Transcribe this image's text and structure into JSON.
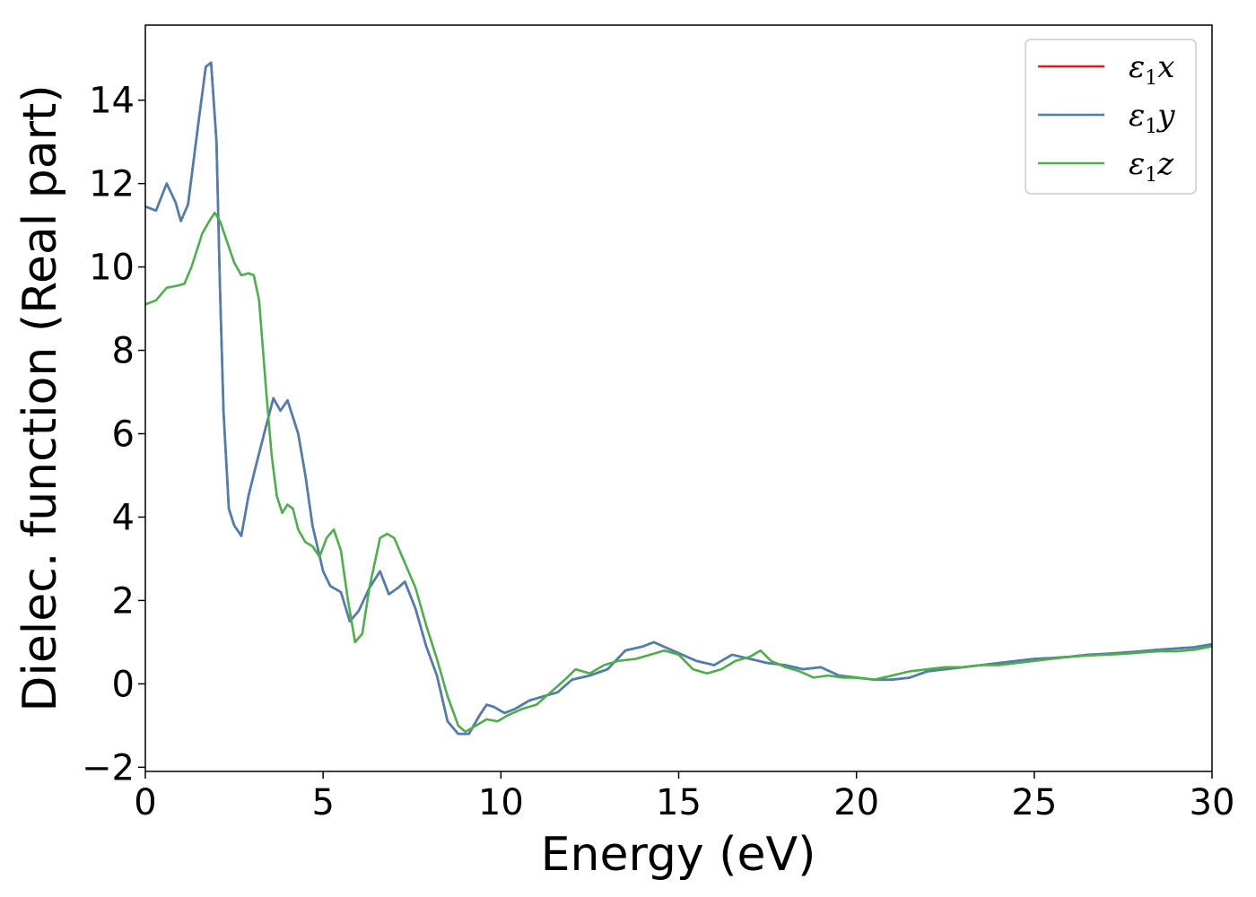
{
  "chart_data": {
    "type": "line",
    "xlabel": "Energy (eV)",
    "ylabel": "Dielec. function (Real part)",
    "xlim": [
      0,
      30
    ],
    "ylim": [
      -2.1,
      15.8
    ],
    "xticks": [
      0,
      5,
      10,
      15,
      20,
      25,
      30
    ],
    "xtick_labels": [
      "0",
      "5",
      "10",
      "15",
      "20",
      "25",
      "30"
    ],
    "yticks": [
      -2,
      0,
      2,
      4,
      6,
      8,
      10,
      12,
      14
    ],
    "ytick_labels": [
      "−2",
      "0",
      "2",
      "4",
      "6",
      "8",
      "10",
      "12",
      "14"
    ],
    "grid": false,
    "legend_position": "top-right",
    "series": [
      {
        "name": "ε1x",
        "label_base": "ε",
        "label_sub": "1",
        "label_axis": "x",
        "color": "#e41a1c",
        "points": [
          [
            0,
            11.45
          ],
          [
            0.3,
            11.35
          ],
          [
            0.6,
            12.0
          ],
          [
            0.85,
            11.55
          ],
          [
            1.0,
            11.1
          ],
          [
            1.2,
            11.5
          ],
          [
            1.5,
            13.5
          ],
          [
            1.7,
            14.8
          ],
          [
            1.85,
            14.9
          ],
          [
            2.0,
            13.0
          ],
          [
            2.1,
            9.5
          ],
          [
            2.2,
            6.5
          ],
          [
            2.35,
            4.2
          ],
          [
            2.5,
            3.8
          ],
          [
            2.7,
            3.55
          ],
          [
            2.9,
            4.5
          ],
          [
            3.1,
            5.2
          ],
          [
            3.4,
            6.2
          ],
          [
            3.6,
            6.85
          ],
          [
            3.8,
            6.55
          ],
          [
            4.0,
            6.8
          ],
          [
            4.3,
            6.0
          ],
          [
            4.5,
            5.0
          ],
          [
            4.7,
            3.8
          ],
          [
            5.0,
            2.7
          ],
          [
            5.2,
            2.35
          ],
          [
            5.5,
            2.2
          ],
          [
            5.75,
            1.5
          ],
          [
            6.0,
            1.75
          ],
          [
            6.3,
            2.3
          ],
          [
            6.6,
            2.7
          ],
          [
            6.85,
            2.15
          ],
          [
            7.1,
            2.3
          ],
          [
            7.3,
            2.45
          ],
          [
            7.6,
            1.8
          ],
          [
            7.9,
            0.9
          ],
          [
            8.2,
            0.2
          ],
          [
            8.5,
            -0.9
          ],
          [
            8.8,
            -1.2
          ],
          [
            9.1,
            -1.2
          ],
          [
            9.4,
            -0.75
          ],
          [
            9.6,
            -0.5
          ],
          [
            9.8,
            -0.55
          ],
          [
            10.1,
            -0.7
          ],
          [
            10.4,
            -0.6
          ],
          [
            10.8,
            -0.4
          ],
          [
            11.2,
            -0.3
          ],
          [
            11.6,
            -0.2
          ],
          [
            12.0,
            0.1
          ],
          [
            12.5,
            0.2
          ],
          [
            13.0,
            0.35
          ],
          [
            13.5,
            0.8
          ],
          [
            14.0,
            0.9
          ],
          [
            14.3,
            1.0
          ],
          [
            14.7,
            0.85
          ],
          [
            15.1,
            0.7
          ],
          [
            15.5,
            0.55
          ],
          [
            16.0,
            0.45
          ],
          [
            16.5,
            0.7
          ],
          [
            17.0,
            0.6
          ],
          [
            17.5,
            0.5
          ],
          [
            18.0,
            0.45
          ],
          [
            18.5,
            0.35
          ],
          [
            19.0,
            0.4
          ],
          [
            19.5,
            0.2
          ],
          [
            20.0,
            0.15
          ],
          [
            20.5,
            0.1
          ],
          [
            21.0,
            0.1
          ],
          [
            21.5,
            0.15
          ],
          [
            22.0,
            0.3
          ],
          [
            22.5,
            0.35
          ],
          [
            23.0,
            0.4
          ],
          [
            23.5,
            0.45
          ],
          [
            24.0,
            0.5
          ],
          [
            24.5,
            0.55
          ],
          [
            25.0,
            0.6
          ],
          [
            25.5,
            0.62
          ],
          [
            26.0,
            0.65
          ],
          [
            26.5,
            0.7
          ],
          [
            27.0,
            0.72
          ],
          [
            27.5,
            0.75
          ],
          [
            28.0,
            0.78
          ],
          [
            28.5,
            0.82
          ],
          [
            29.0,
            0.85
          ],
          [
            29.5,
            0.88
          ],
          [
            30.0,
            0.95
          ]
        ]
      },
      {
        "name": "ε1y",
        "label_base": "ε",
        "label_sub": "1",
        "label_axis": "y",
        "color": "#4a7fb5",
        "points": [
          [
            0,
            11.45
          ],
          [
            0.3,
            11.35
          ],
          [
            0.6,
            12.0
          ],
          [
            0.85,
            11.55
          ],
          [
            1.0,
            11.1
          ],
          [
            1.2,
            11.5
          ],
          [
            1.5,
            13.5
          ],
          [
            1.7,
            14.8
          ],
          [
            1.85,
            14.9
          ],
          [
            2.0,
            13.0
          ],
          [
            2.1,
            9.5
          ],
          [
            2.2,
            6.5
          ],
          [
            2.35,
            4.2
          ],
          [
            2.5,
            3.8
          ],
          [
            2.7,
            3.55
          ],
          [
            2.9,
            4.5
          ],
          [
            3.1,
            5.2
          ],
          [
            3.4,
            6.2
          ],
          [
            3.6,
            6.85
          ],
          [
            3.8,
            6.55
          ],
          [
            4.0,
            6.8
          ],
          [
            4.3,
            6.0
          ],
          [
            4.5,
            5.0
          ],
          [
            4.7,
            3.8
          ],
          [
            5.0,
            2.7
          ],
          [
            5.2,
            2.35
          ],
          [
            5.5,
            2.2
          ],
          [
            5.75,
            1.5
          ],
          [
            6.0,
            1.75
          ],
          [
            6.3,
            2.3
          ],
          [
            6.6,
            2.7
          ],
          [
            6.85,
            2.15
          ],
          [
            7.1,
            2.3
          ],
          [
            7.3,
            2.45
          ],
          [
            7.6,
            1.8
          ],
          [
            7.9,
            0.9
          ],
          [
            8.2,
            0.2
          ],
          [
            8.5,
            -0.9
          ],
          [
            8.8,
            -1.2
          ],
          [
            9.1,
            -1.2
          ],
          [
            9.4,
            -0.75
          ],
          [
            9.6,
            -0.5
          ],
          [
            9.8,
            -0.55
          ],
          [
            10.1,
            -0.7
          ],
          [
            10.4,
            -0.6
          ],
          [
            10.8,
            -0.4
          ],
          [
            11.2,
            -0.3
          ],
          [
            11.6,
            -0.2
          ],
          [
            12.0,
            0.1
          ],
          [
            12.5,
            0.2
          ],
          [
            13.0,
            0.35
          ],
          [
            13.5,
            0.8
          ],
          [
            14.0,
            0.9
          ],
          [
            14.3,
            1.0
          ],
          [
            14.7,
            0.85
          ],
          [
            15.1,
            0.7
          ],
          [
            15.5,
            0.55
          ],
          [
            16.0,
            0.45
          ],
          [
            16.5,
            0.7
          ],
          [
            17.0,
            0.6
          ],
          [
            17.5,
            0.5
          ],
          [
            18.0,
            0.45
          ],
          [
            18.5,
            0.35
          ],
          [
            19.0,
            0.4
          ],
          [
            19.5,
            0.2
          ],
          [
            20.0,
            0.15
          ],
          [
            20.5,
            0.1
          ],
          [
            21.0,
            0.1
          ],
          [
            21.5,
            0.15
          ],
          [
            22.0,
            0.3
          ],
          [
            22.5,
            0.35
          ],
          [
            23.0,
            0.4
          ],
          [
            23.5,
            0.45
          ],
          [
            24.0,
            0.5
          ],
          [
            24.5,
            0.55
          ],
          [
            25.0,
            0.6
          ],
          [
            25.5,
            0.62
          ],
          [
            26.0,
            0.65
          ],
          [
            26.5,
            0.7
          ],
          [
            27.0,
            0.72
          ],
          [
            27.5,
            0.75
          ],
          [
            28.0,
            0.78
          ],
          [
            28.5,
            0.82
          ],
          [
            29.0,
            0.85
          ],
          [
            29.5,
            0.88
          ],
          [
            30.0,
            0.95
          ]
        ]
      },
      {
        "name": "ε1z",
        "label_base": "ε",
        "label_sub": "1",
        "label_axis": "z",
        "color": "#4daf4a",
        "points": [
          [
            0,
            9.1
          ],
          [
            0.3,
            9.2
          ],
          [
            0.6,
            9.5
          ],
          [
            0.9,
            9.55
          ],
          [
            1.1,
            9.6
          ],
          [
            1.3,
            10.0
          ],
          [
            1.6,
            10.8
          ],
          [
            1.8,
            11.1
          ],
          [
            1.95,
            11.3
          ],
          [
            2.1,
            11.1
          ],
          [
            2.3,
            10.6
          ],
          [
            2.5,
            10.1
          ],
          [
            2.7,
            9.8
          ],
          [
            2.9,
            9.85
          ],
          [
            3.05,
            9.8
          ],
          [
            3.2,
            9.2
          ],
          [
            3.4,
            7.0
          ],
          [
            3.55,
            5.5
          ],
          [
            3.7,
            4.5
          ],
          [
            3.85,
            4.1
          ],
          [
            4.0,
            4.3
          ],
          [
            4.15,
            4.2
          ],
          [
            4.3,
            3.7
          ],
          [
            4.5,
            3.4
          ],
          [
            4.7,
            3.3
          ],
          [
            4.9,
            3.05
          ],
          [
            5.1,
            3.5
          ],
          [
            5.3,
            3.7
          ],
          [
            5.5,
            3.2
          ],
          [
            5.7,
            2.0
          ],
          [
            5.9,
            1.0
          ],
          [
            6.1,
            1.2
          ],
          [
            6.3,
            2.3
          ],
          [
            6.6,
            3.5
          ],
          [
            6.8,
            3.6
          ],
          [
            7.0,
            3.5
          ],
          [
            7.3,
            2.9
          ],
          [
            7.6,
            2.3
          ],
          [
            7.9,
            1.4
          ],
          [
            8.2,
            0.6
          ],
          [
            8.5,
            -0.3
          ],
          [
            8.8,
            -1.0
          ],
          [
            9.0,
            -1.15
          ],
          [
            9.3,
            -1.0
          ],
          [
            9.6,
            -0.85
          ],
          [
            9.9,
            -0.9
          ],
          [
            10.2,
            -0.75
          ],
          [
            10.6,
            -0.6
          ],
          [
            11.0,
            -0.5
          ],
          [
            11.4,
            -0.2
          ],
          [
            11.8,
            0.1
          ],
          [
            12.1,
            0.35
          ],
          [
            12.5,
            0.25
          ],
          [
            12.9,
            0.45
          ],
          [
            13.3,
            0.55
          ],
          [
            13.8,
            0.6
          ],
          [
            14.2,
            0.7
          ],
          [
            14.6,
            0.8
          ],
          [
            15.0,
            0.7
          ],
          [
            15.4,
            0.35
          ],
          [
            15.8,
            0.25
          ],
          [
            16.2,
            0.35
          ],
          [
            16.6,
            0.55
          ],
          [
            17.0,
            0.65
          ],
          [
            17.3,
            0.8
          ],
          [
            17.6,
            0.55
          ],
          [
            18.0,
            0.4
          ],
          [
            18.4,
            0.3
          ],
          [
            18.8,
            0.15
          ],
          [
            19.2,
            0.2
          ],
          [
            19.6,
            0.15
          ],
          [
            20.0,
            0.15
          ],
          [
            20.5,
            0.1
          ],
          [
            21.0,
            0.2
          ],
          [
            21.5,
            0.3
          ],
          [
            22.0,
            0.35
          ],
          [
            22.5,
            0.4
          ],
          [
            23.0,
            0.4
          ],
          [
            23.5,
            0.45
          ],
          [
            24.0,
            0.45
          ],
          [
            24.5,
            0.5
          ],
          [
            25.0,
            0.55
          ],
          [
            25.5,
            0.6
          ],
          [
            26.0,
            0.65
          ],
          [
            26.5,
            0.68
          ],
          [
            27.0,
            0.7
          ],
          [
            27.5,
            0.72
          ],
          [
            28.0,
            0.75
          ],
          [
            28.5,
            0.78
          ],
          [
            29.0,
            0.78
          ],
          [
            29.5,
            0.82
          ],
          [
            30.0,
            0.9
          ]
        ]
      }
    ]
  }
}
